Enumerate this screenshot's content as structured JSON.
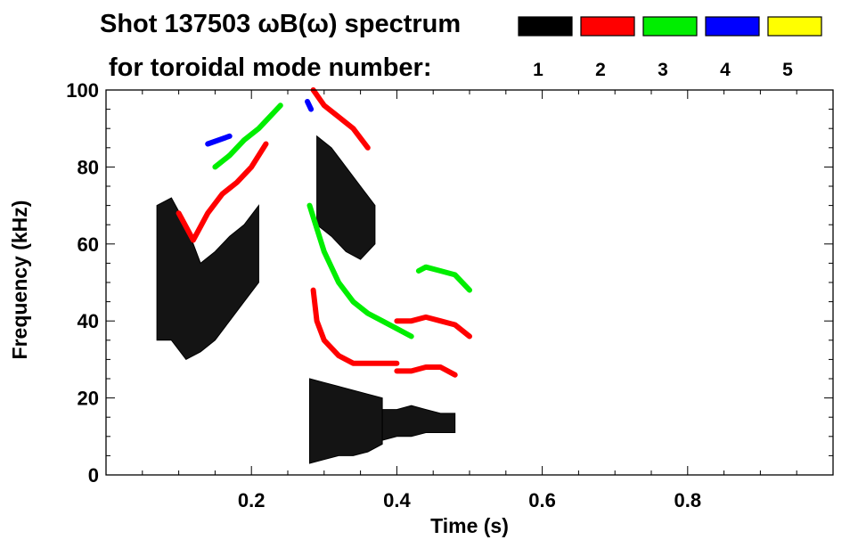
{
  "chart_data": {
    "type": "heatmap",
    "title_line1": "Shot 137503 ωB(ω) spectrum",
    "title_line2": "for toroidal mode number:",
    "xlabel": "Time (s)",
    "ylabel": "Frequency (kHz)",
    "xlim": [
      0.0,
      1.0
    ],
    "ylim": [
      0,
      100
    ],
    "x_ticks": [
      {
        "value": 0.2,
        "label": "0.2"
      },
      {
        "value": 0.4,
        "label": "0.4"
      },
      {
        "value": 0.6,
        "label": "0.6"
      },
      {
        "value": 0.8,
        "label": "0.8"
      }
    ],
    "y_ticks": [
      {
        "value": 0,
        "label": "0"
      },
      {
        "value": 20,
        "label": "20"
      },
      {
        "value": 40,
        "label": "40"
      },
      {
        "value": 60,
        "label": "60"
      },
      {
        "value": 80,
        "label": "80"
      },
      {
        "value": 100,
        "label": "100"
      }
    ],
    "legend_placement": "top-right",
    "modes": [
      {
        "label": "1",
        "color": "#000000"
      },
      {
        "label": "2",
        "color": "#ff0000"
      },
      {
        "label": "3",
        "color": "#00ee00"
      },
      {
        "label": "4",
        "color": "#0000ff"
      },
      {
        "label": "5",
        "color": "#ffff00"
      }
    ],
    "series": [
      {
        "mode": "1",
        "kind": "band",
        "t": [
          0.07,
          0.09,
          0.11,
          0.13,
          0.15,
          0.17,
          0.19,
          0.21
        ],
        "f_low": [
          35,
          35,
          30,
          32,
          35,
          40,
          45,
          50
        ],
        "f_high": [
          70,
          72,
          65,
          55,
          58,
          62,
          65,
          70
        ]
      },
      {
        "mode": "1",
        "kind": "band",
        "t": [
          0.29,
          0.31,
          0.33,
          0.35,
          0.37
        ],
        "f_low": [
          65,
          62,
          58,
          56,
          60
        ],
        "f_high": [
          88,
          85,
          80,
          75,
          70
        ]
      },
      {
        "mode": "1",
        "kind": "band",
        "t": [
          0.28,
          0.3,
          0.32,
          0.34,
          0.36,
          0.38
        ],
        "f_low": [
          3,
          4,
          5,
          5,
          6,
          8
        ],
        "f_high": [
          25,
          24,
          23,
          22,
          21,
          20
        ]
      },
      {
        "mode": "1",
        "kind": "band",
        "t": [
          0.38,
          0.4,
          0.42,
          0.44,
          0.46,
          0.48
        ],
        "f_low": [
          9,
          10,
          10,
          11,
          11,
          11
        ],
        "f_high": [
          17,
          17,
          18,
          17,
          16,
          16
        ]
      },
      {
        "mode": "2",
        "kind": "line",
        "t": [
          0.1,
          0.12,
          0.14,
          0.16,
          0.18,
          0.2,
          0.22
        ],
        "f": [
          68,
          61,
          68,
          73,
          76,
          80,
          86
        ]
      },
      {
        "mode": "2",
        "kind": "line",
        "t": [
          0.285,
          0.29,
          0.3,
          0.32,
          0.34,
          0.36,
          0.38,
          0.4
        ],
        "f": [
          48,
          40,
          35,
          31,
          29,
          29,
          29,
          29
        ]
      },
      {
        "mode": "2",
        "kind": "line",
        "t": [
          0.4,
          0.42,
          0.44,
          0.46,
          0.48
        ],
        "f": [
          27,
          27,
          28,
          28,
          26
        ]
      },
      {
        "mode": "2",
        "kind": "line",
        "t": [
          0.4,
          0.42,
          0.44,
          0.46,
          0.48,
          0.5
        ],
        "f": [
          40,
          40,
          41,
          40,
          39,
          36
        ]
      },
      {
        "mode": "2",
        "kind": "line",
        "t": [
          0.285,
          0.3,
          0.32,
          0.34,
          0.36
        ],
        "f": [
          100,
          96,
          93,
          90,
          85
        ]
      },
      {
        "mode": "3",
        "kind": "line",
        "t": [
          0.15,
          0.17,
          0.19,
          0.21,
          0.23,
          0.24
        ],
        "f": [
          80,
          83,
          87,
          90,
          94,
          96
        ]
      },
      {
        "mode": "3",
        "kind": "line",
        "t": [
          0.43,
          0.44,
          0.46,
          0.48,
          0.5
        ],
        "f": [
          53,
          54,
          53,
          52,
          48
        ]
      },
      {
        "mode": "3",
        "kind": "line",
        "t": [
          0.28,
          0.3,
          0.32,
          0.34,
          0.36,
          0.38,
          0.4,
          0.42
        ],
        "f": [
          70,
          58,
          50,
          45,
          42,
          40,
          38,
          36
        ]
      },
      {
        "mode": "4",
        "kind": "line",
        "t": [
          0.14,
          0.17
        ],
        "f": [
          86,
          88
        ]
      },
      {
        "mode": "4",
        "kind": "line",
        "t": [
          0.277,
          0.282
        ],
        "f": [
          97,
          95
        ]
      }
    ]
  }
}
